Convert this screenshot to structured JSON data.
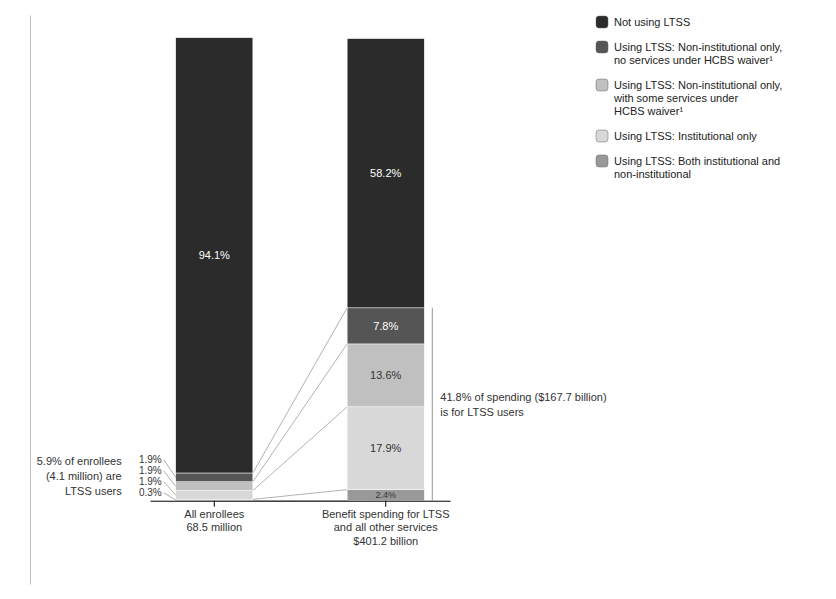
{
  "chart_data": {
    "type": "bar",
    "stacked": true,
    "data_labels": true,
    "tick_labels": "x",
    "legend": "upper right",
    "categories": [
      "All enrollees\n68.5 million",
      "Benefit spending for LTSS\nand all other services\n$401.2 billion"
    ],
    "series": [
      {
        "name": "Using LTSS: Both institutional and\nnon-institutional",
        "color": "#999999",
        "values": [
          0.3,
          2.4
        ],
        "value_labels": [
          "0.3%",
          "2.4%"
        ]
      },
      {
        "name": "Using LTSS: Institutional only",
        "color": "#d8d8d8",
        "values": [
          1.9,
          17.9
        ],
        "value_labels": [
          "1.9%",
          "17.9%"
        ]
      },
      {
        "name": "Using LTSS: Non-institutional only,\nwith some services under\nHCBS waiver¹",
        "color": "#c0c0c0",
        "values": [
          1.9,
          13.6
        ],
        "value_labels": [
          "1.9%",
          "13.6%"
        ]
      },
      {
        "name": "Using LTSS: Non-institutional only,\nno services under HCBS waiver¹",
        "color": "#555555",
        "values": [
          1.9,
          7.8
        ],
        "value_labels": [
          "1.9%",
          "7.8%"
        ]
      },
      {
        "name": "Not using LTSS",
        "color": "#2b2b2b",
        "values": [
          94.1,
          58.2
        ],
        "value_labels": [
          "94.1%",
          "58.2%"
        ]
      }
    ],
    "annotations": [
      "5.9% of enrollees\n(4.1 million) are\nLTSS users",
      "41.8% of spending ($167.7 billion)\nis for LTSS users"
    ],
    "ylim": [
      -18,
      105
    ]
  }
}
